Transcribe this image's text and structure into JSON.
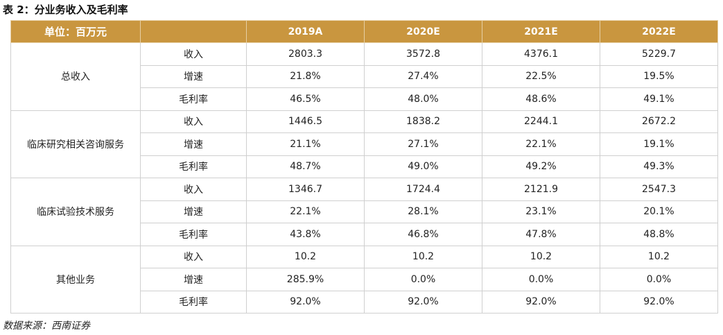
{
  "title": "表 2：分业务收入及毛利率",
  "header": {
    "unit": "单位：百万元",
    "blank": "",
    "years": [
      "2019A",
      "2020E",
      "2021E",
      "2022E"
    ]
  },
  "segments": [
    {
      "name": "总收入",
      "rows": [
        {
          "metric": "收入",
          "values": [
            "2803.3",
            "3572.8",
            "4376.1",
            "5229.7"
          ]
        },
        {
          "metric": "增速",
          "values": [
            "21.8%",
            "27.4%",
            "22.5%",
            "19.5%"
          ]
        },
        {
          "metric": "毛利率",
          "values": [
            "46.5%",
            "48.0%",
            "48.6%",
            "49.1%"
          ]
        }
      ]
    },
    {
      "name": "临床研究相关咨询服务",
      "rows": [
        {
          "metric": "收入",
          "values": [
            "1446.5",
            "1838.2",
            "2244.1",
            "2672.2"
          ]
        },
        {
          "metric": "增速",
          "values": [
            "21.1%",
            "27.1%",
            "22.1%",
            "19.1%"
          ]
        },
        {
          "metric": "毛利率",
          "values": [
            "48.7%",
            "49.0%",
            "49.2%",
            "49.3%"
          ]
        }
      ]
    },
    {
      "name": "临床试验技术服务",
      "rows": [
        {
          "metric": "收入",
          "values": [
            "1346.7",
            "1724.4",
            "2121.9",
            "2547.3"
          ]
        },
        {
          "metric": "增速",
          "values": [
            "22.1%",
            "28.1%",
            "23.1%",
            "20.1%"
          ]
        },
        {
          "metric": "毛利率",
          "values": [
            "43.8%",
            "46.8%",
            "47.8%",
            "48.8%"
          ]
        }
      ]
    },
    {
      "name": "其他业务",
      "rows": [
        {
          "metric": "收入",
          "values": [
            "10.2",
            "10.2",
            "10.2",
            "10.2"
          ]
        },
        {
          "metric": "增速",
          "values": [
            "285.9%",
            "0.0%",
            "0.0%",
            "0.0%"
          ]
        },
        {
          "metric": "毛利率",
          "values": [
            "92.0%",
            "92.0%",
            "92.0%",
            "92.0%"
          ]
        }
      ]
    }
  ],
  "source": "数据来源：西南证券",
  "colors": {
    "header_bg": "#c9963f",
    "header_text": "#ffffff",
    "border": "#cfcfcf"
  }
}
